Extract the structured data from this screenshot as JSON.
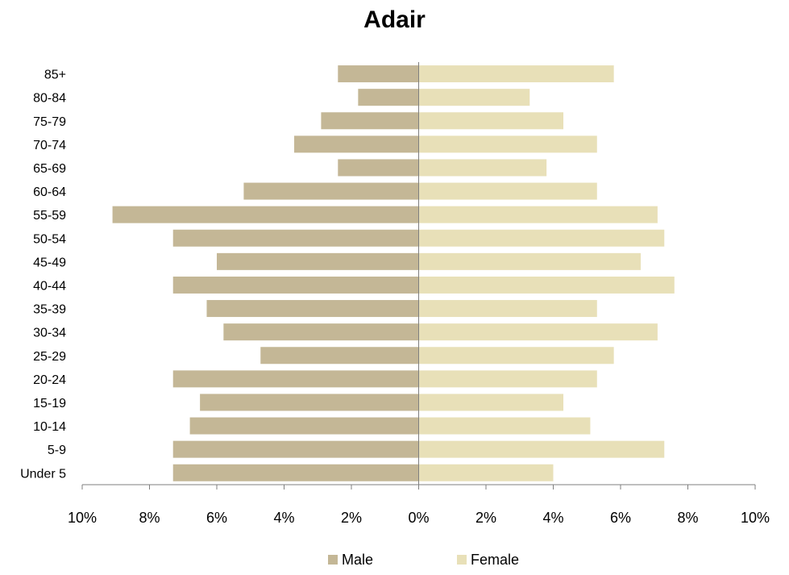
{
  "chart_data": {
    "type": "bar",
    "orientation": "horizontal-diverging",
    "title": "Adair",
    "categories": [
      "85+",
      "80-84",
      "75-79",
      "70-74",
      "65-69",
      "60-64",
      "55-59",
      "50-54",
      "45-49",
      "40-44",
      "35-39",
      "30-34",
      "25-29",
      "20-24",
      "15-19",
      "10-14",
      "5-9",
      "Under 5"
    ],
    "series": [
      {
        "name": "Male",
        "color": "#c4b796",
        "values": [
          2.4,
          1.8,
          2.9,
          3.7,
          2.4,
          5.2,
          9.1,
          7.3,
          6.0,
          7.3,
          6.3,
          5.8,
          4.7,
          7.3,
          6.5,
          6.8,
          7.3,
          7.3
        ]
      },
      {
        "name": "Female",
        "color": "#e8e0b8",
        "values": [
          5.8,
          3.3,
          4.3,
          5.3,
          3.8,
          5.3,
          7.1,
          7.3,
          6.6,
          7.6,
          5.3,
          7.1,
          5.8,
          5.3,
          4.3,
          5.1,
          7.3,
          4.0
        ]
      }
    ],
    "xlim": [
      -10,
      10
    ],
    "xticks": [
      "10%",
      "8%",
      "6%",
      "4%",
      "2%",
      "0%",
      "2%",
      "4%",
      "6%",
      "8%",
      "10%"
    ],
    "legend": "bottom",
    "grid": false
  }
}
